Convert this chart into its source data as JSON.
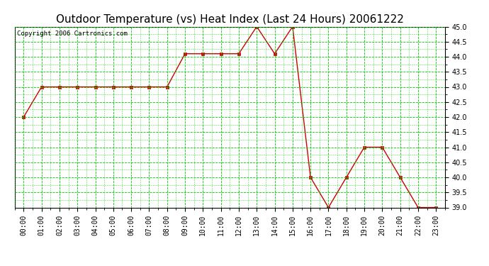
{
  "title": "Outdoor Temperature (vs) Heat Index (Last 24 Hours) 20061222",
  "copyright": "Copyright 2006 Cartronics.com",
  "x_labels": [
    "00:00",
    "01:00",
    "02:00",
    "03:00",
    "04:00",
    "05:00",
    "06:00",
    "07:00",
    "08:00",
    "09:00",
    "10:00",
    "11:00",
    "12:00",
    "13:00",
    "14:00",
    "15:00",
    "16:00",
    "17:00",
    "18:00",
    "19:00",
    "20:00",
    "21:00",
    "22:00",
    "23:00"
  ],
  "y_values": [
    42.0,
    43.0,
    43.0,
    43.0,
    43.0,
    43.0,
    43.0,
    43.0,
    43.0,
    44.1,
    44.1,
    44.1,
    44.1,
    45.0,
    44.1,
    45.0,
    40.0,
    39.0,
    40.0,
    41.0,
    41.0,
    40.0,
    39.0,
    39.0
  ],
  "ylim_min": 39.0,
  "ylim_max": 45.0,
  "ytick_step": 0.5,
  "line_color": "#cc0000",
  "marker": "s",
  "marker_size": 2.5,
  "bg_color": "#ffffff",
  "grid_color": "#00cc00",
  "title_fontsize": 11,
  "tick_fontsize": 7,
  "copyright_fontsize": 6.5,
  "fig_width": 6.9,
  "fig_height": 3.75,
  "dpi": 100
}
